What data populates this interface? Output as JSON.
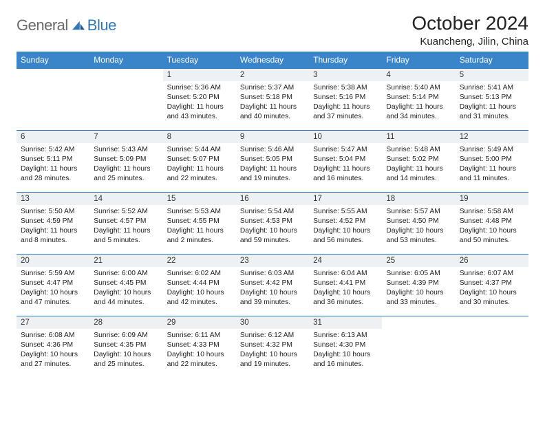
{
  "brand": {
    "part1": "General",
    "part2": "Blue"
  },
  "title": "October 2024",
  "location": "Kuancheng, Jilin, China",
  "colors": {
    "header_bg": "#3a85c9",
    "header_text": "#ffffff",
    "daynum_bg": "#eef1f3",
    "rule": "#2f78bc",
    "logo_gray": "#6a6a6a",
    "logo_blue": "#2f78bc",
    "text": "#222222",
    "background": "#ffffff"
  },
  "typography": {
    "title_fontsize": 28,
    "location_fontsize": 15,
    "dayheader_fontsize": 12,
    "daynum_fontsize": 11.5,
    "body_fontsize": 10.3
  },
  "day_headers": [
    "Sunday",
    "Monday",
    "Tuesday",
    "Wednesday",
    "Thursday",
    "Friday",
    "Saturday"
  ],
  "weeks": [
    {
      "nums": [
        "",
        "",
        "1",
        "2",
        "3",
        "4",
        "5"
      ],
      "cells": [
        null,
        null,
        {
          "sunrise": "Sunrise: 5:36 AM",
          "sunset": "Sunset: 5:20 PM",
          "daylight": "Daylight: 11 hours and 43 minutes."
        },
        {
          "sunrise": "Sunrise: 5:37 AM",
          "sunset": "Sunset: 5:18 PM",
          "daylight": "Daylight: 11 hours and 40 minutes."
        },
        {
          "sunrise": "Sunrise: 5:38 AM",
          "sunset": "Sunset: 5:16 PM",
          "daylight": "Daylight: 11 hours and 37 minutes."
        },
        {
          "sunrise": "Sunrise: 5:40 AM",
          "sunset": "Sunset: 5:14 PM",
          "daylight": "Daylight: 11 hours and 34 minutes."
        },
        {
          "sunrise": "Sunrise: 5:41 AM",
          "sunset": "Sunset: 5:13 PM",
          "daylight": "Daylight: 11 hours and 31 minutes."
        }
      ]
    },
    {
      "nums": [
        "6",
        "7",
        "8",
        "9",
        "10",
        "11",
        "12"
      ],
      "cells": [
        {
          "sunrise": "Sunrise: 5:42 AM",
          "sunset": "Sunset: 5:11 PM",
          "daylight": "Daylight: 11 hours and 28 minutes."
        },
        {
          "sunrise": "Sunrise: 5:43 AM",
          "sunset": "Sunset: 5:09 PM",
          "daylight": "Daylight: 11 hours and 25 minutes."
        },
        {
          "sunrise": "Sunrise: 5:44 AM",
          "sunset": "Sunset: 5:07 PM",
          "daylight": "Daylight: 11 hours and 22 minutes."
        },
        {
          "sunrise": "Sunrise: 5:46 AM",
          "sunset": "Sunset: 5:05 PM",
          "daylight": "Daylight: 11 hours and 19 minutes."
        },
        {
          "sunrise": "Sunrise: 5:47 AM",
          "sunset": "Sunset: 5:04 PM",
          "daylight": "Daylight: 11 hours and 16 minutes."
        },
        {
          "sunrise": "Sunrise: 5:48 AM",
          "sunset": "Sunset: 5:02 PM",
          "daylight": "Daylight: 11 hours and 14 minutes."
        },
        {
          "sunrise": "Sunrise: 5:49 AM",
          "sunset": "Sunset: 5:00 PM",
          "daylight": "Daylight: 11 hours and 11 minutes."
        }
      ]
    },
    {
      "nums": [
        "13",
        "14",
        "15",
        "16",
        "17",
        "18",
        "19"
      ],
      "cells": [
        {
          "sunrise": "Sunrise: 5:50 AM",
          "sunset": "Sunset: 4:59 PM",
          "daylight": "Daylight: 11 hours and 8 minutes."
        },
        {
          "sunrise": "Sunrise: 5:52 AM",
          "sunset": "Sunset: 4:57 PM",
          "daylight": "Daylight: 11 hours and 5 minutes."
        },
        {
          "sunrise": "Sunrise: 5:53 AM",
          "sunset": "Sunset: 4:55 PM",
          "daylight": "Daylight: 11 hours and 2 minutes."
        },
        {
          "sunrise": "Sunrise: 5:54 AM",
          "sunset": "Sunset: 4:53 PM",
          "daylight": "Daylight: 10 hours and 59 minutes."
        },
        {
          "sunrise": "Sunrise: 5:55 AM",
          "sunset": "Sunset: 4:52 PM",
          "daylight": "Daylight: 10 hours and 56 minutes."
        },
        {
          "sunrise": "Sunrise: 5:57 AM",
          "sunset": "Sunset: 4:50 PM",
          "daylight": "Daylight: 10 hours and 53 minutes."
        },
        {
          "sunrise": "Sunrise: 5:58 AM",
          "sunset": "Sunset: 4:48 PM",
          "daylight": "Daylight: 10 hours and 50 minutes."
        }
      ]
    },
    {
      "nums": [
        "20",
        "21",
        "22",
        "23",
        "24",
        "25",
        "26"
      ],
      "cells": [
        {
          "sunrise": "Sunrise: 5:59 AM",
          "sunset": "Sunset: 4:47 PM",
          "daylight": "Daylight: 10 hours and 47 minutes."
        },
        {
          "sunrise": "Sunrise: 6:00 AM",
          "sunset": "Sunset: 4:45 PM",
          "daylight": "Daylight: 10 hours and 44 minutes."
        },
        {
          "sunrise": "Sunrise: 6:02 AM",
          "sunset": "Sunset: 4:44 PM",
          "daylight": "Daylight: 10 hours and 42 minutes."
        },
        {
          "sunrise": "Sunrise: 6:03 AM",
          "sunset": "Sunset: 4:42 PM",
          "daylight": "Daylight: 10 hours and 39 minutes."
        },
        {
          "sunrise": "Sunrise: 6:04 AM",
          "sunset": "Sunset: 4:41 PM",
          "daylight": "Daylight: 10 hours and 36 minutes."
        },
        {
          "sunrise": "Sunrise: 6:05 AM",
          "sunset": "Sunset: 4:39 PM",
          "daylight": "Daylight: 10 hours and 33 minutes."
        },
        {
          "sunrise": "Sunrise: 6:07 AM",
          "sunset": "Sunset: 4:37 PM",
          "daylight": "Daylight: 10 hours and 30 minutes."
        }
      ]
    },
    {
      "nums": [
        "27",
        "28",
        "29",
        "30",
        "31",
        "",
        ""
      ],
      "cells": [
        {
          "sunrise": "Sunrise: 6:08 AM",
          "sunset": "Sunset: 4:36 PM",
          "daylight": "Daylight: 10 hours and 27 minutes."
        },
        {
          "sunrise": "Sunrise: 6:09 AM",
          "sunset": "Sunset: 4:35 PM",
          "daylight": "Daylight: 10 hours and 25 minutes."
        },
        {
          "sunrise": "Sunrise: 6:11 AM",
          "sunset": "Sunset: 4:33 PM",
          "daylight": "Daylight: 10 hours and 22 minutes."
        },
        {
          "sunrise": "Sunrise: 6:12 AM",
          "sunset": "Sunset: 4:32 PM",
          "daylight": "Daylight: 10 hours and 19 minutes."
        },
        {
          "sunrise": "Sunrise: 6:13 AM",
          "sunset": "Sunset: 4:30 PM",
          "daylight": "Daylight: 10 hours and 16 minutes."
        },
        null,
        null
      ]
    }
  ]
}
